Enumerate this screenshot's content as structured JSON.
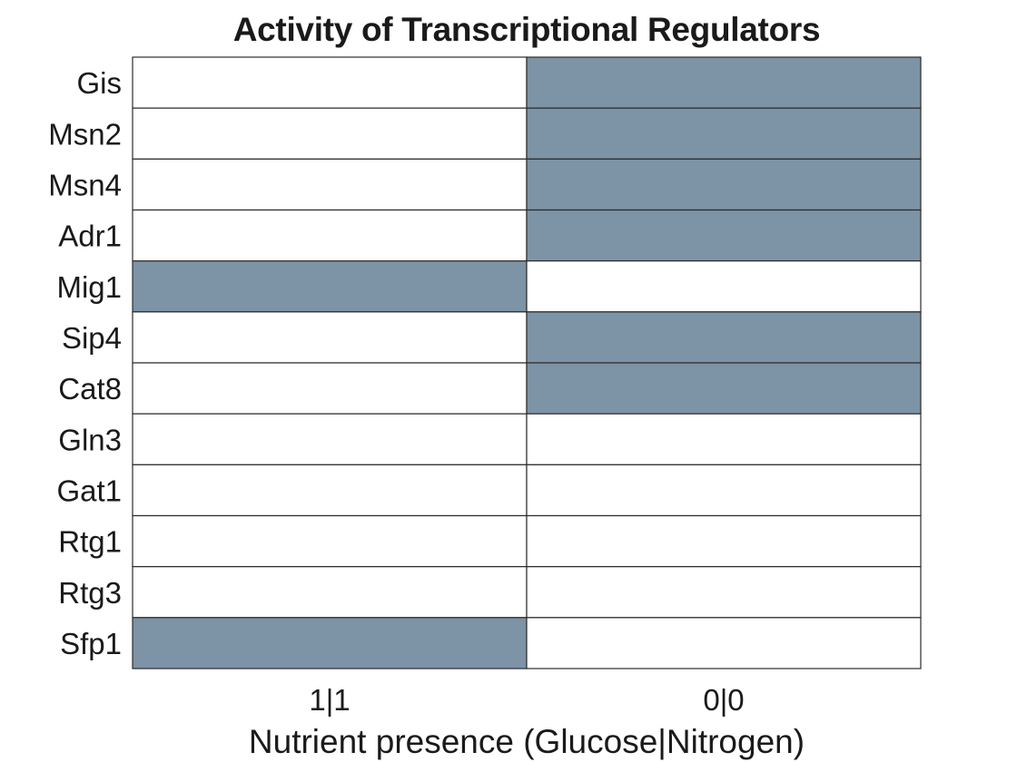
{
  "chart_data": {
    "type": "heatmap",
    "title": "Activity of Transcriptional Regulators",
    "xlabel": "Nutrient presence (Glucose|Nitrogen)",
    "ylabel": "",
    "columns": [
      "1|1",
      "0|0"
    ],
    "rows": [
      "Gis",
      "Msn2",
      "Msn4",
      "Adr1",
      "Mig1",
      "Sip4",
      "Cat8",
      "Gln3",
      "Gat1",
      "Rtg1",
      "Rtg3",
      "Sfp1"
    ],
    "values": [
      [
        0,
        1
      ],
      [
        0,
        1
      ],
      [
        0,
        1
      ],
      [
        0,
        1
      ],
      [
        1,
        0
      ],
      [
        0,
        1
      ],
      [
        0,
        1
      ],
      [
        0,
        0
      ],
      [
        0,
        0
      ],
      [
        0,
        0
      ],
      [
        0,
        0
      ],
      [
        1,
        0
      ]
    ],
    "colors": {
      "active": "#7d93a6",
      "inactive": "#ffffff",
      "border": "#2b2b2b"
    }
  }
}
